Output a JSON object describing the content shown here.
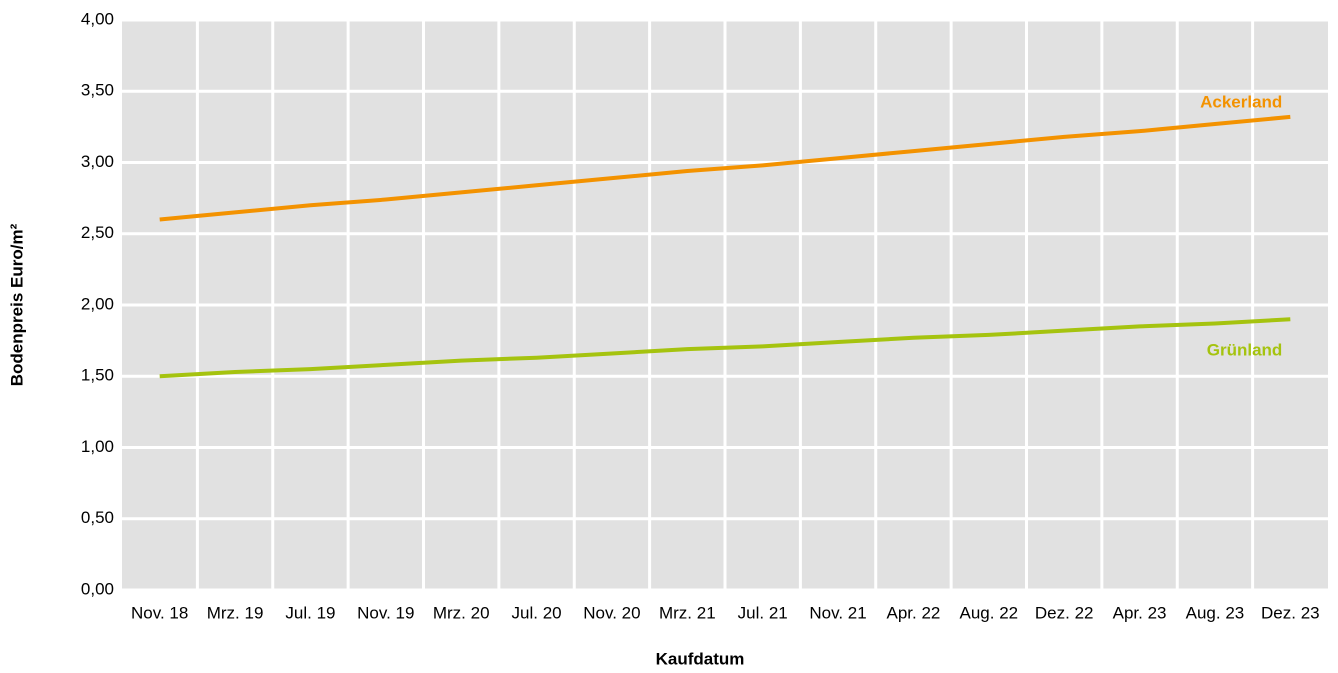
{
  "chart_data": {
    "type": "line",
    "xlabel": "Kaufdatum",
    "ylabel": "Bodenpreis Euro/m²",
    "categories": [
      "Nov. 18",
      "Mrz. 19",
      "Jul. 19",
      "Nov. 19",
      "Mrz. 20",
      "Jul. 20",
      "Nov. 20",
      "Mrz. 21",
      "Jul. 21",
      "Nov. 21",
      "Apr. 22",
      "Aug. 22",
      "Dez. 22",
      "Apr. 23",
      "Aug. 23",
      "Dez. 23"
    ],
    "series": [
      {
        "name": "Ackerland",
        "color": "#f39200",
        "values": [
          2.6,
          2.65,
          2.7,
          2.74,
          2.79,
          2.84,
          2.89,
          2.94,
          2.98,
          3.03,
          3.08,
          3.13,
          3.18,
          3.22,
          3.27,
          3.32
        ]
      },
      {
        "name": "Grünland",
        "color": "#a5c30f",
        "values": [
          1.5,
          1.53,
          1.55,
          1.58,
          1.61,
          1.63,
          1.66,
          1.69,
          1.71,
          1.74,
          1.77,
          1.79,
          1.82,
          1.85,
          1.87,
          1.9
        ]
      }
    ],
    "ylim": [
      0,
      4
    ],
    "yticks": [
      {
        "value": 0,
        "label": "0,00"
      },
      {
        "value": 0.5,
        "label": "0,50"
      },
      {
        "value": 1,
        "label": "1,00"
      },
      {
        "value": 1.5,
        "label": "1,50"
      },
      {
        "value": 2,
        "label": "2,00"
      },
      {
        "value": 2.5,
        "label": "2,50"
      },
      {
        "value": 3,
        "label": "3,00"
      },
      {
        "value": 3.5,
        "label": "3,50"
      },
      {
        "value": 4,
        "label": "4,00"
      }
    ],
    "grid": true
  }
}
